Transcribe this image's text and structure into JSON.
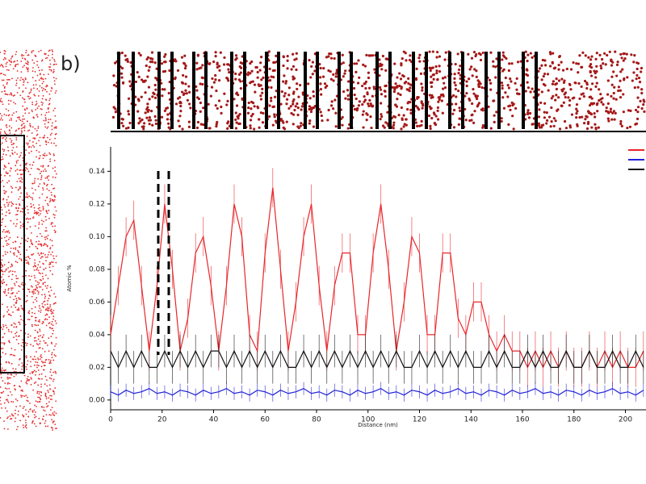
{
  "panel_label": "b)",
  "chart_data": {
    "type": "line",
    "x_label": "Distance (nm)",
    "y_label": "Atomic %",
    "x": [
      0,
      3,
      6,
      9,
      12,
      15,
      18,
      21,
      24,
      27,
      30,
      33,
      36,
      39,
      42,
      45,
      48,
      51,
      54,
      57,
      60,
      63,
      66,
      69,
      72,
      75,
      78,
      81,
      84,
      87,
      90,
      93,
      96,
      99,
      102,
      105,
      108,
      111,
      114,
      117,
      120,
      123,
      126,
      129,
      132,
      135,
      138,
      141,
      144,
      147,
      150,
      153,
      156,
      159,
      162,
      165,
      168,
      171,
      174,
      177,
      180,
      183,
      186,
      189,
      192,
      195,
      198,
      201,
      204,
      207
    ],
    "series": [
      {
        "color": "#e8262a",
        "error": 0.012,
        "values": [
          0.04,
          0.07,
          0.1,
          0.11,
          0.07,
          0.03,
          0.07,
          0.12,
          0.08,
          0.03,
          0.05,
          0.09,
          0.1,
          0.07,
          0.03,
          0.07,
          0.12,
          0.1,
          0.04,
          0.03,
          0.09,
          0.13,
          0.08,
          0.03,
          0.06,
          0.1,
          0.12,
          0.07,
          0.03,
          0.07,
          0.09,
          0.09,
          0.04,
          0.04,
          0.09,
          0.12,
          0.08,
          0.03,
          0.06,
          0.1,
          0.09,
          0.04,
          0.04,
          0.09,
          0.09,
          0.05,
          0.04,
          0.06,
          0.06,
          0.04,
          0.03,
          0.04,
          0.03,
          0.03,
          0.02,
          0.03,
          0.02,
          0.03,
          0.02,
          0.03,
          0.02,
          0.02,
          0.03,
          0.02,
          0.03,
          0.02,
          0.03,
          0.02,
          0.02,
          0.03
        ]
      },
      {
        "color": "#2323d8",
        "error": 0.004,
        "values": [
          0.005,
          0.003,
          0.006,
          0.004,
          0.005,
          0.007,
          0.004,
          0.005,
          0.003,
          0.006,
          0.005,
          0.003,
          0.006,
          0.004,
          0.005,
          0.007,
          0.004,
          0.005,
          0.003,
          0.006,
          0.005,
          0.003,
          0.006,
          0.004,
          0.005,
          0.007,
          0.004,
          0.005,
          0.003,
          0.006,
          0.005,
          0.003,
          0.006,
          0.004,
          0.005,
          0.007,
          0.004,
          0.005,
          0.003,
          0.006,
          0.005,
          0.003,
          0.006,
          0.004,
          0.005,
          0.007,
          0.004,
          0.005,
          0.003,
          0.006,
          0.005,
          0.003,
          0.006,
          0.004,
          0.005,
          0.007,
          0.004,
          0.005,
          0.003,
          0.006,
          0.005,
          0.003,
          0.006,
          0.004,
          0.005,
          0.007,
          0.004,
          0.005,
          0.003,
          0.006
        ]
      },
      {
        "color": "#111111",
        "error": 0.01,
        "values": [
          0.03,
          0.02,
          0.03,
          0.02,
          0.03,
          0.02,
          0.02,
          0.03,
          0.02,
          0.03,
          0.02,
          0.03,
          0.02,
          0.03,
          0.03,
          0.02,
          0.03,
          0.02,
          0.03,
          0.02,
          0.03,
          0.02,
          0.03,
          0.02,
          0.02,
          0.03,
          0.02,
          0.03,
          0.02,
          0.03,
          0.02,
          0.03,
          0.02,
          0.03,
          0.02,
          0.03,
          0.02,
          0.03,
          0.02,
          0.02,
          0.03,
          0.02,
          0.03,
          0.02,
          0.03,
          0.02,
          0.03,
          0.02,
          0.02,
          0.03,
          0.02,
          0.03,
          0.02,
          0.02,
          0.03,
          0.02,
          0.03,
          0.02,
          0.02,
          0.03,
          0.02,
          0.02,
          0.03,
          0.02,
          0.02,
          0.03,
          0.02,
          0.02,
          0.03,
          0.02
        ]
      }
    ],
    "xlim": [
      0,
      208
    ],
    "xticks": [
      0,
      20,
      40,
      60,
      80,
      100,
      120,
      140,
      160,
      180,
      200
    ],
    "ylim": [
      -0.006,
      0.155
    ],
    "yticks": [
      {
        "value": 0,
        "label": "0.00"
      },
      0.02,
      0.04,
      0.06,
      0.08,
      {
        "value": 0.1,
        "label": "0.10"
      },
      0.12,
      0.14
    ]
  }
}
